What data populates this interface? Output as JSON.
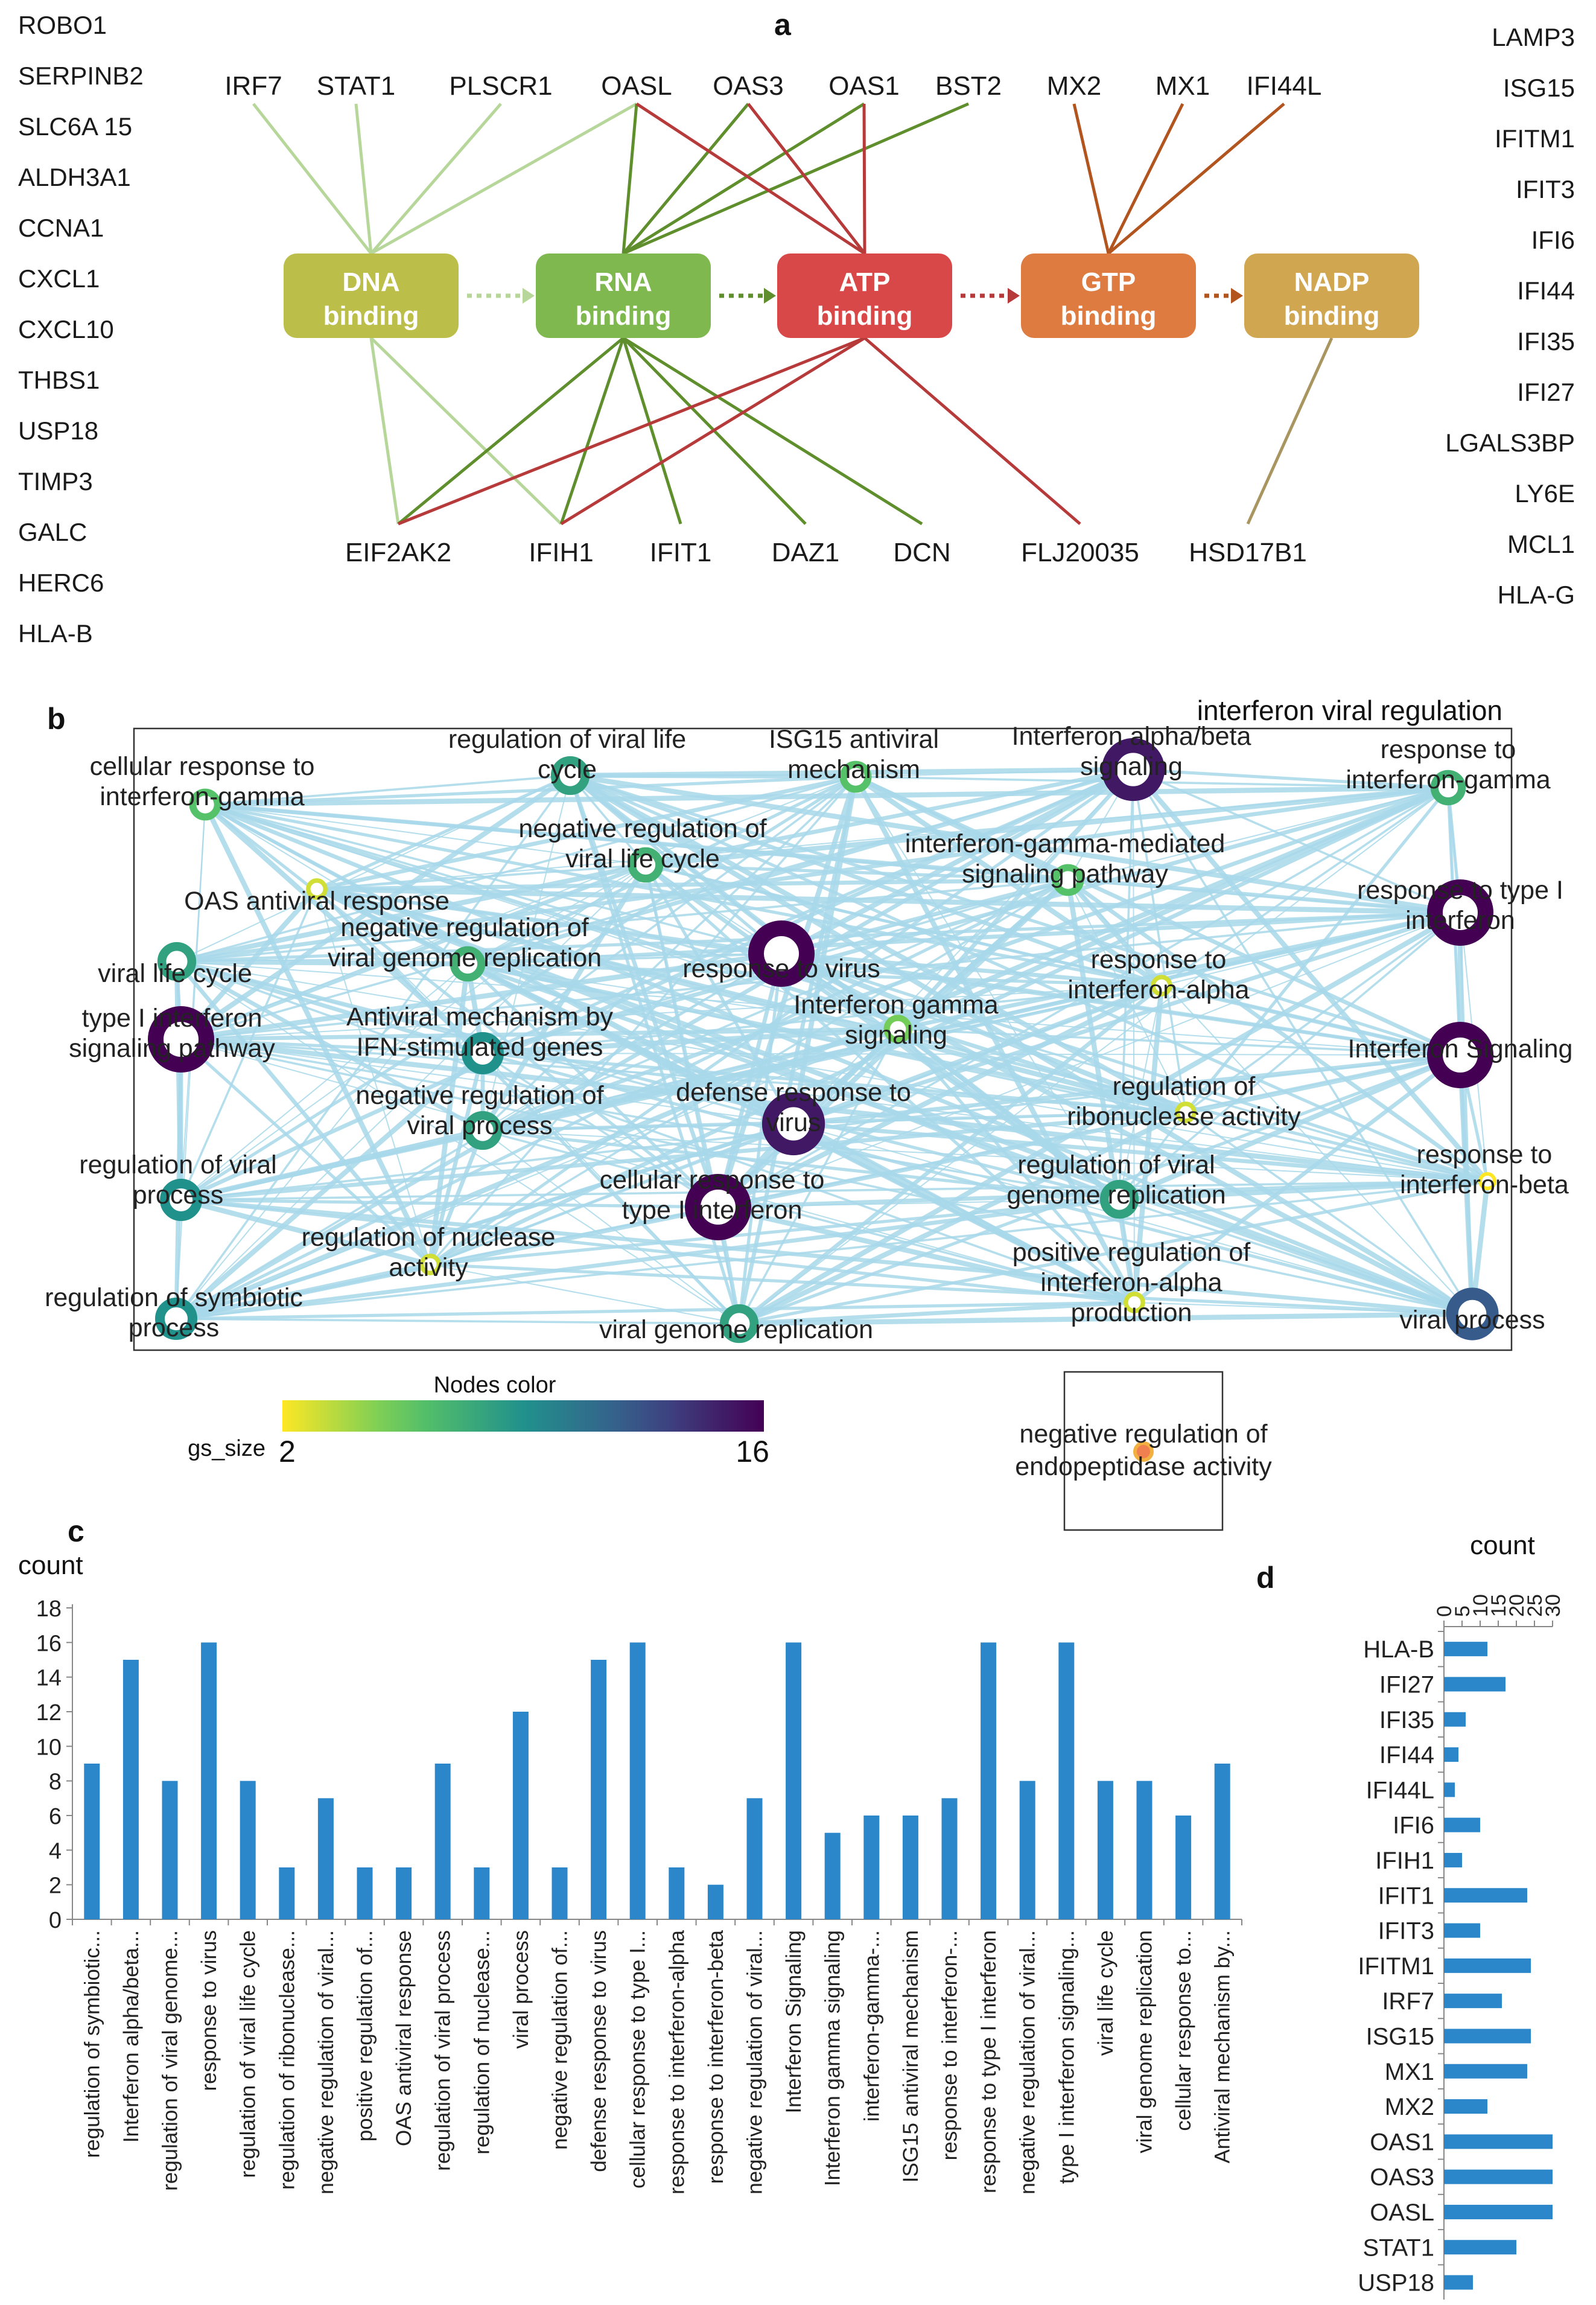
{
  "panels": {
    "a": "a",
    "b": "b",
    "c": "c",
    "d": "d"
  },
  "colors": {
    "DNA": "#bcbe4a",
    "RNA": "#7fb84e",
    "ATP": "#d94848",
    "GTP": "#dd7b40",
    "NADP": "#d0a650",
    "edge_dna": "#b6d69a",
    "edge_rna": "#5e8f2c",
    "edge_atp": "#b73a3a",
    "edge_gtp": "#b2541e",
    "edge_nadp": "#a89560",
    "network_edge": "#a8d8ea",
    "bar": "#2b87c9"
  },
  "panel_a": {
    "left_genes": [
      "ROBO1",
      "SERPINB2",
      "SLC6A 15",
      "ALDH3A1",
      "CCNA1",
      "CXCL1",
      "CXCL10",
      "THBS1",
      "USP18",
      "TIMP3",
      "GALC",
      "HERC6",
      "HLA-B"
    ],
    "right_genes": [
      "LAMP3",
      "ISG15",
      "IFITM1",
      "IFIT3",
      "IFI6",
      "IFI44",
      "IFI35",
      "IFI27",
      "LGALS3BP",
      "LY6E",
      "MCL1",
      "HLA-G"
    ],
    "top_genes": [
      "IRF7",
      "STAT1",
      "PLSCR1",
      "OASL",
      "OAS3",
      "OAS1",
      "BST2",
      "MX2",
      "MX1",
      "IFI44L"
    ],
    "bottom_genes": [
      "EIF2AK2",
      "IFIH1",
      "IFIT1",
      "DAZ1",
      "DCN",
      "FLJ20035",
      "HSD17B1"
    ],
    "functions": [
      {
        "key": "DNA",
        "line1": "DNA",
        "line2": "binding"
      },
      {
        "key": "RNA",
        "line1": "RNA",
        "line2": "binding"
      },
      {
        "key": "ATP",
        "line1": "ATP",
        "line2": "binding"
      },
      {
        "key": "GTP",
        "line1": "GTP",
        "line2": "binding"
      },
      {
        "key": "NADP",
        "line1": "NADP",
        "line2": "binding"
      }
    ],
    "links": [
      [
        "IRF7",
        "DNA"
      ],
      [
        "STAT1",
        "DNA"
      ],
      [
        "PLSCR1",
        "DNA"
      ],
      [
        "OASL",
        "DNA"
      ],
      [
        "OASL",
        "RNA"
      ],
      [
        "OAS3",
        "RNA"
      ],
      [
        "OAS1",
        "RNA"
      ],
      [
        "BST2",
        "RNA"
      ],
      [
        "OASL",
        "ATP"
      ],
      [
        "OAS3",
        "ATP"
      ],
      [
        "OAS1",
        "ATP"
      ],
      [
        "MX2",
        "GTP"
      ],
      [
        "MX1",
        "GTP"
      ],
      [
        "IFI44L",
        "GTP"
      ],
      [
        "EIF2AK2",
        "DNA"
      ],
      [
        "IFIH1",
        "DNA"
      ],
      [
        "EIF2AK2",
        "RNA"
      ],
      [
        "IFIH1",
        "RNA"
      ],
      [
        "IFIT1",
        "RNA"
      ],
      [
        "DAZ1",
        "RNA"
      ],
      [
        "DCN",
        "RNA"
      ],
      [
        "EIF2AK2",
        "ATP"
      ],
      [
        "IFIH1",
        "ATP"
      ],
      [
        "FLJ20035",
        "ATP"
      ],
      [
        "HSD17B1",
        "NADP"
      ]
    ]
  },
  "panel_b": {
    "title": "interferon viral regulation",
    "legend": {
      "title": "Nodes color",
      "label": "gs_size",
      "min": "2",
      "max": "16"
    },
    "nodes": [
      {
        "label": "cellular response to interferon-gamma",
        "size": 6
      },
      {
        "label": "regulation of viral life cycle",
        "size": 8
      },
      {
        "label": "ISG15 antiviral mechanism",
        "size": 6
      },
      {
        "label": "Interferon alpha/beta signaling",
        "size": 15
      },
      {
        "label": "response to interferon-gamma",
        "size": 7
      },
      {
        "label": "negative regulation of viral life cycle",
        "size": 7
      },
      {
        "label": "OAS antiviral response",
        "size": 3
      },
      {
        "label": "interferon-gamma-mediated signaling pathway",
        "size": 6
      },
      {
        "label": "response to type I interferon",
        "size": 16
      },
      {
        "label": "viral life cycle",
        "size": 8
      },
      {
        "label": "negative regulation of viral genome replication",
        "size": 7
      },
      {
        "label": "response to virus",
        "size": 16
      },
      {
        "label": "response to interferon-alpha",
        "size": 3
      },
      {
        "label": "type I interferon signaling pathway",
        "size": 16
      },
      {
        "label": "Antiviral mechanism by IFN-stimulated genes",
        "size": 9
      },
      {
        "label": "Interferon gamma signaling",
        "size": 5
      },
      {
        "label": "Interferon Signaling",
        "size": 16
      },
      {
        "label": "defense response to virus",
        "size": 15
      },
      {
        "label": "regulation of ribonuclease activity",
        "size": 3
      },
      {
        "label": "negative regulation of viral process",
        "size": 8
      },
      {
        "label": "regulation of viral process",
        "size": 9
      },
      {
        "label": "response to interferon-beta",
        "size": 2
      },
      {
        "label": "cellular response to type I interferon",
        "size": 16
      },
      {
        "label": "regulation of viral genome replication",
        "size": 8
      },
      {
        "label": "regulation of nuclease activity",
        "size": 3
      },
      {
        "label": "regulation of symbiotic process",
        "size": 9
      },
      {
        "label": "viral genome replication",
        "size": 8
      },
      {
        "label": "positive regulation of interferon-alpha production",
        "size": 3
      },
      {
        "label": "viral process",
        "size": 12
      }
    ],
    "isolated_node": {
      "label": "negative regulation of endopeptidase activity",
      "size": 3
    }
  },
  "chart_data": [
    {
      "type": "bar",
      "panel": "c",
      "title": "",
      "ylabel": "count",
      "xlabel": "",
      "ylim": [
        0,
        18
      ],
      "yticks": [
        0,
        2,
        4,
        6,
        8,
        10,
        12,
        14,
        16,
        18
      ],
      "categories": [
        "regulation of symbiotic...",
        "Interferon alpha/beta...",
        "regulation of viral genome...",
        "response to virus",
        "regulation of viral life cycle",
        "regulation of ribonuclease...",
        "negative regulation of viral...",
        "positive regulation of...",
        "OAS antiviral response",
        "regulation of viral process",
        "regulation of nuclease...",
        "viral process",
        "negative regulation of...",
        "defense response to virus",
        "cellular response to type I...",
        "response to interferon-alpha",
        "response to interferon-beta",
        "negative regulation of viral...",
        "Interferon Signaling",
        "Interferon gamma signaling",
        "interferon-gamma-...",
        "ISG15 antiviral mechanism",
        "response to interferon-...",
        "response to type I interferon",
        "negative regulation of viral...",
        "type I interferon signaling...",
        "viral life cycle",
        "viral genome replication",
        "cellular response to...",
        "Antiviral mechanism by..."
      ],
      "values": [
        9,
        15,
        8,
        16,
        8,
        3,
        7,
        3,
        3,
        9,
        3,
        12,
        3,
        15,
        16,
        3,
        2,
        7,
        16,
        5,
        6,
        6,
        7,
        16,
        8,
        16,
        8,
        8,
        6,
        9
      ]
    },
    {
      "type": "bar",
      "orientation": "horizontal",
      "panel": "d",
      "title": "count",
      "xlim": [
        0,
        30
      ],
      "xticks": [
        0,
        5,
        10,
        15,
        20,
        25,
        30
      ],
      "categories": [
        "HLA-B",
        "IFI27",
        "IFI35",
        "IFI44",
        "IFI44L",
        "IFI6",
        "IFIH1",
        "IFIT1",
        "IFIT3",
        "IFITM1",
        "IRF7",
        "ISG15",
        "MX1",
        "MX2",
        "OAS1",
        "OAS3",
        "OASL",
        "STAT1",
        "USP18"
      ],
      "values": [
        12,
        17,
        6,
        4,
        3,
        10,
        5,
        23,
        10,
        24,
        16,
        24,
        23,
        12,
        30,
        30,
        30,
        20,
        8
      ]
    }
  ]
}
